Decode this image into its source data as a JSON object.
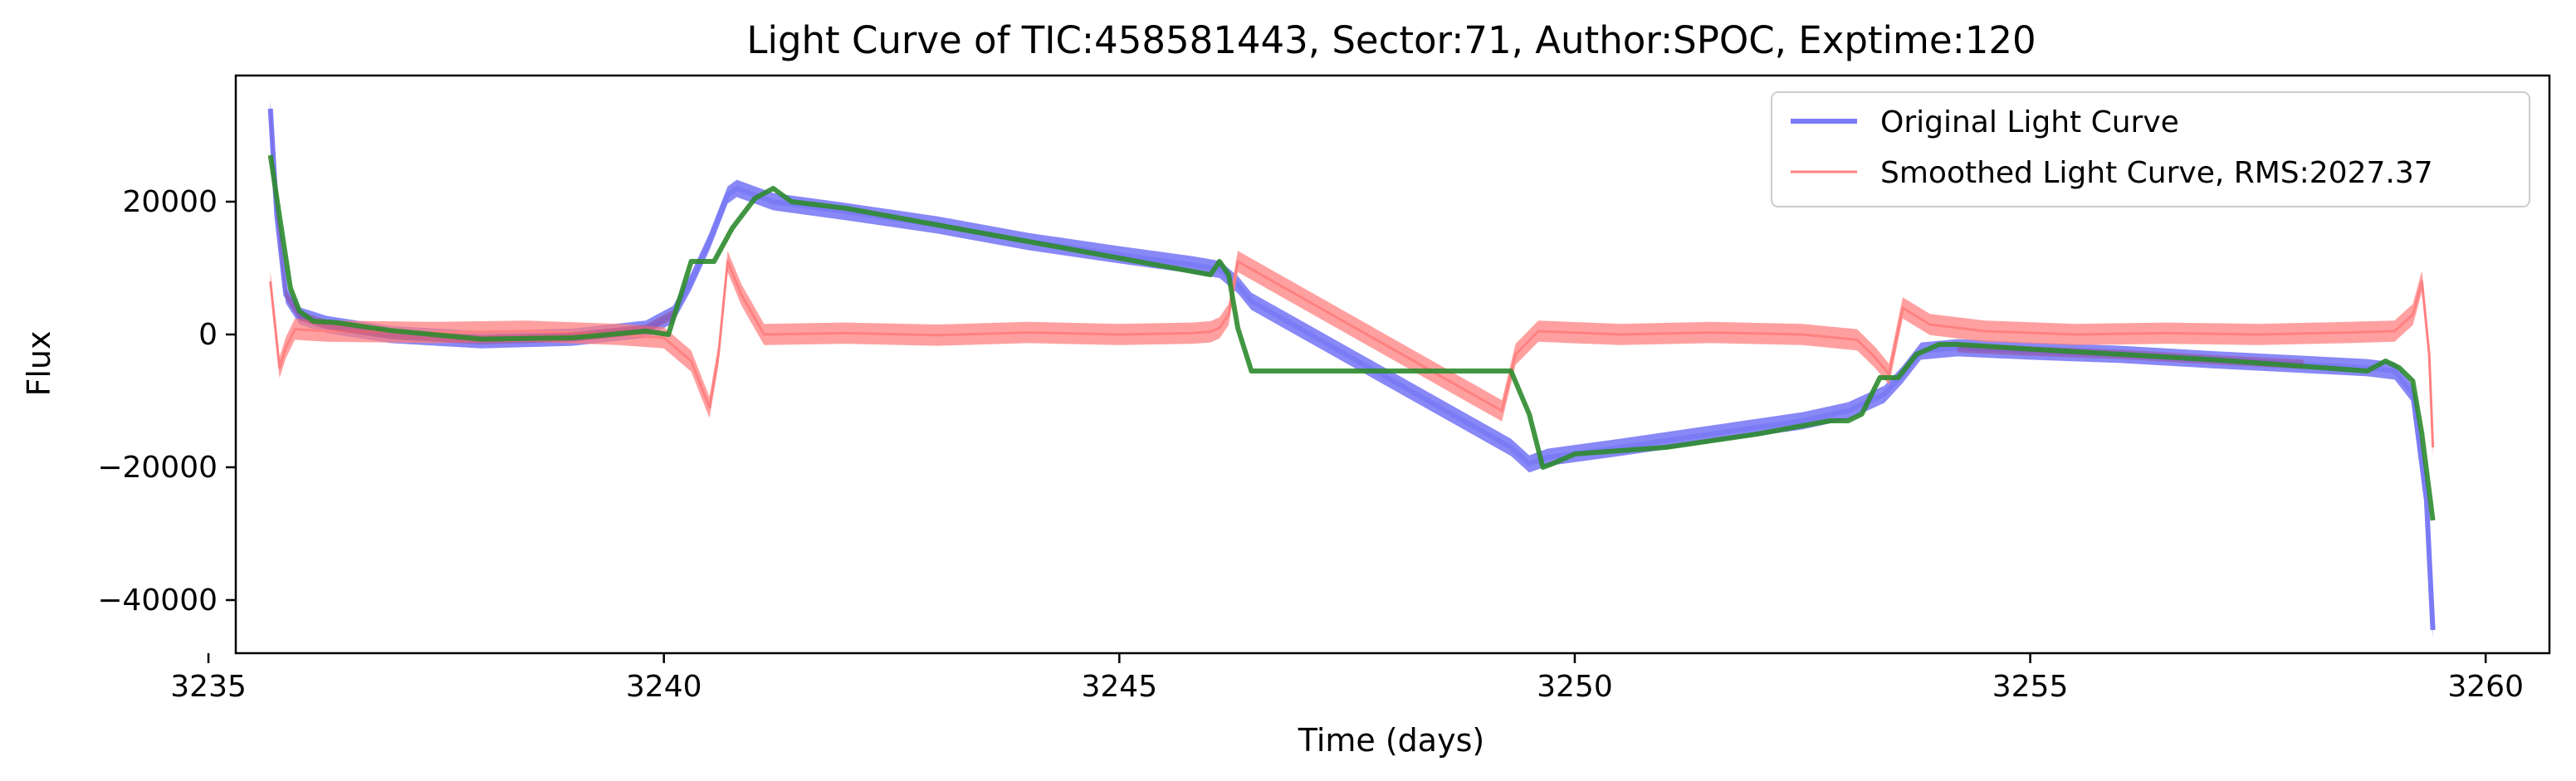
{
  "chart_data": {
    "type": "line",
    "title": "Light Curve of TIC:458581443, Sector:71, Author:SPOC, Exptime:120",
    "xlabel": "Time (days)",
    "ylabel": "Flux",
    "xlim": [
      3235.3,
      3260.7
    ],
    "ylim": [
      -48000,
      39000
    ],
    "xticks": [
      3235,
      3240,
      3245,
      3250,
      3255,
      3260
    ],
    "yticks": [
      -40000,
      -20000,
      0,
      20000
    ],
    "ytick_labels": [
      "−40000",
      "−20000",
      "0",
      "20000"
    ],
    "grid": false,
    "legend_position": "top-right",
    "legend": [
      {
        "label": "Original Light Curve",
        "color": "#7b7bf6"
      },
      {
        "label": "Smoothed Light Curve, RMS:2027.37",
        "color": "#ff8080"
      }
    ],
    "series": [
      {
        "name": "Original Light Curve",
        "color": "#7b7bf6",
        "noise_band": 1300,
        "x": [
          3235.68,
          3235.75,
          3235.85,
          3236.0,
          3236.3,
          3237.0,
          3238.0,
          3239.0,
          3239.8,
          3240.1,
          3240.3,
          3240.5,
          3240.7,
          3240.8,
          3241.2,
          3242.0,
          3243.0,
          3244.0,
          3245.0,
          3245.8,
          3246.1,
          3246.3,
          3246.45,
          3249.3,
          3249.5,
          3249.7,
          3250.5,
          3251.5,
          3252.5,
          3253.0,
          3253.4,
          3253.6,
          3253.8,
          3254.2,
          3255.0,
          3256.0,
          3257.0,
          3258.0,
          3258.7,
          3259.0,
          3259.2,
          3259.35,
          3259.42
        ],
        "y": [
          34000,
          18000,
          6000,
          2800,
          1500,
          0,
          -800,
          -400,
          800,
          3000,
          8000,
          14000,
          21000,
          22000,
          20000,
          18500,
          16500,
          14000,
          12000,
          10500,
          9800,
          7500,
          5000,
          -17000,
          -19500,
          -18500,
          -17000,
          -15000,
          -13000,
          -11500,
          -9000,
          -6000,
          -2500,
          -2000,
          -2500,
          -3000,
          -3800,
          -4500,
          -5000,
          -5500,
          -9000,
          -25000,
          -44500
        ]
      },
      {
        "name": "Smoothed Light Curve, RMS:2027.37",
        "color": "#ff8080",
        "noise_band": 1600,
        "x": [
          3235.68,
          3235.78,
          3235.85,
          3235.95,
          3236.3,
          3237.5,
          3238.5,
          3239.5,
          3240.0,
          3240.3,
          3240.5,
          3240.6,
          3240.7,
          3240.85,
          3241.1,
          3242.0,
          3243.0,
          3244.0,
          3245.0,
          3245.8,
          3246.0,
          3246.1,
          3246.2,
          3246.3,
          3249.2,
          3249.35,
          3249.6,
          3250.5,
          3251.5,
          3252.5,
          3253.1,
          3253.3,
          3253.45,
          3253.6,
          3253.9,
          3254.5,
          3255.5,
          3256.5,
          3257.5,
          3258.5,
          3259.0,
          3259.2,
          3259.3,
          3259.38,
          3259.42
        ],
        "y": [
          8000,
          -5000,
          -2000,
          800,
          500,
          300,
          500,
          0,
          -500,
          -4000,
          -11000,
          -3000,
          11000,
          6000,
          0,
          200,
          -100,
          300,
          0,
          200,
          400,
          1000,
          3000,
          11000,
          -11500,
          -3000,
          500,
          0,
          300,
          0,
          -800,
          -3500,
          -6000,
          4000,
          1500,
          500,
          0,
          200,
          0,
          300,
          500,
          3000,
          8000,
          -3000,
          -17000
        ]
      },
      {
        "name": "",
        "color": "#2e8b2e",
        "x": [
          3235.68,
          3235.8,
          3235.9,
          3236.0,
          3236.15,
          3236.4,
          3237.0,
          3238.0,
          3239.0,
          3239.8,
          3240.05,
          3240.3,
          3240.55,
          3240.75,
          3241.0,
          3241.2,
          3241.4,
          3242.0,
          3243.0,
          3244.0,
          3245.0,
          3245.8,
          3246.0,
          3246.1,
          3246.2,
          3246.3,
          3246.45,
          3249.3,
          3249.5,
          3249.65,
          3249.75,
          3250.0,
          3251.0,
          3252.0,
          3252.8,
          3253.0,
          3253.15,
          3253.35,
          3253.55,
          3253.75,
          3254.0,
          3254.2,
          3255.0,
          3256.0,
          3257.0,
          3258.0,
          3258.7,
          3258.9,
          3259.05,
          3259.2,
          3259.3,
          3259.42
        ],
        "y": [
          27000,
          16000,
          7000,
          3500,
          2000,
          1800,
          600,
          -700,
          -500,
          500,
          0,
          11000,
          11000,
          16000,
          20500,
          22000,
          20000,
          19000,
          16500,
          14000,
          11500,
          9500,
          9000,
          11000,
          9000,
          1000,
          -5500,
          -5500,
          -12000,
          -20000,
          -19500,
          -18000,
          -17000,
          -15000,
          -13000,
          -13000,
          -12000,
          -6500,
          -6500,
          -3000,
          -1500,
          -1500,
          -2200,
          -3000,
          -3800,
          -4800,
          -5500,
          -4000,
          -5000,
          -7000,
          -15000,
          -28000
        ]
      }
    ]
  }
}
